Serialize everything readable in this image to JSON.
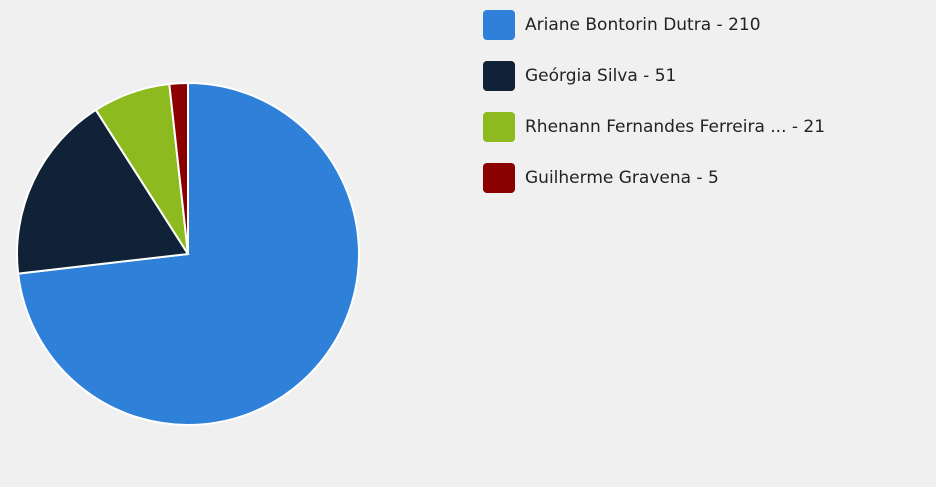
{
  "chart_data": {
    "type": "pie",
    "categories": [
      "Ariane Bontorin Dutra - 210",
      "Geórgia Silva - 51",
      "Rhenann Fernandes Ferreira ... - 21",
      "Guilherme Gravena - 5"
    ],
    "values": [
      210,
      51,
      21,
      5
    ],
    "colors": [
      "#2f80d8",
      "#0f2238",
      "#8dba1f",
      "#8b0000"
    ],
    "legend": "right"
  }
}
